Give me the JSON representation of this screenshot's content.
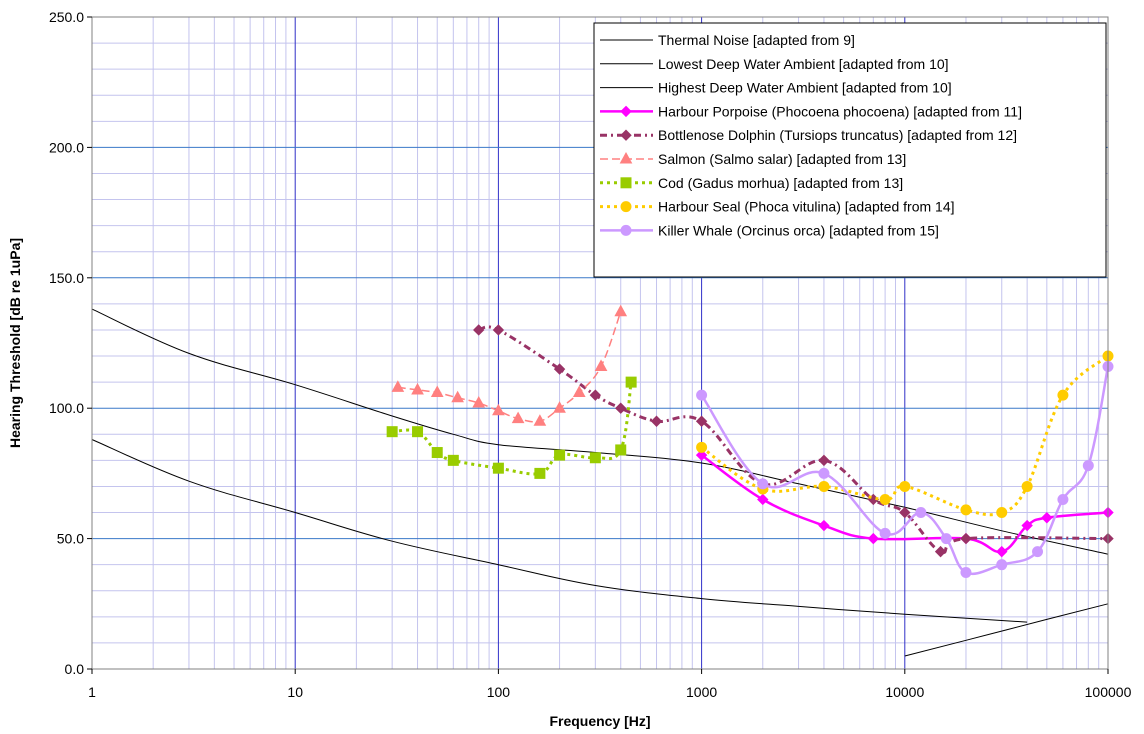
{
  "chart_data": {
    "type": "line",
    "xlabel": "Frequency [Hz]",
    "ylabel": "Hearing Threshold [dB re 1uPa]",
    "x_scale": "log",
    "xlim": [
      1,
      100000
    ],
    "ylim": [
      0,
      250
    ],
    "x_ticks": [
      {
        "value": 1,
        "label": "1"
      },
      {
        "value": 10,
        "label": "10"
      },
      {
        "value": 100,
        "label": "100"
      },
      {
        "value": 1000,
        "label": "1000"
      },
      {
        "value": 10000,
        "label": "10000"
      },
      {
        "value": 100000,
        "label": "100000"
      }
    ],
    "y_ticks": [
      {
        "value": 0,
        "label": "0.0"
      },
      {
        "value": 50,
        "label": "50.0"
      },
      {
        "value": 100,
        "label": "100.0"
      },
      {
        "value": 150,
        "label": "150.0"
      },
      {
        "value": 200,
        "label": "200.0"
      },
      {
        "value": 250,
        "label": "250.0"
      }
    ],
    "grid": true,
    "legend_position": "top-right",
    "series": [
      {
        "name": "Thermal Noise [adapted from 9]",
        "color": "#000000",
        "width": 1,
        "dash": "",
        "marker": "none",
        "smooth": true,
        "points": [
          [
            10000,
            5
          ],
          [
            20000,
            11
          ],
          [
            50000,
            19
          ],
          [
            100000,
            25
          ]
        ]
      },
      {
        "name": "Lowest Deep Water Ambient [adapted from 10]",
        "color": "#000000",
        "width": 1,
        "dash": "",
        "marker": "none",
        "smooth": true,
        "points": [
          [
            1,
            88
          ],
          [
            3,
            72
          ],
          [
            10,
            60
          ],
          [
            30,
            49
          ],
          [
            100,
            40
          ],
          [
            300,
            32
          ],
          [
            1000,
            27
          ],
          [
            3000,
            24
          ],
          [
            10000,
            21
          ],
          [
            40000,
            18
          ]
        ]
      },
      {
        "name": "Highest Deep Water Ambient [adapted from 10]",
        "color": "#000000",
        "width": 1,
        "dash": "",
        "marker": "none",
        "smooth": true,
        "points": [
          [
            1,
            138
          ],
          [
            3,
            121
          ],
          [
            10,
            109
          ],
          [
            30,
            97
          ],
          [
            60,
            90
          ],
          [
            100,
            86
          ],
          [
            300,
            83
          ],
          [
            1000,
            79
          ],
          [
            3000,
            71
          ],
          [
            10000,
            62
          ],
          [
            30000,
            53
          ],
          [
            100000,
            44
          ]
        ]
      },
      {
        "name": "Harbour Porpoise (Phocoena phocoena) [adapted from 11]",
        "color": "#ff00ff",
        "width": 2.5,
        "dash": "",
        "marker": "diamond",
        "smooth": true,
        "points": [
          [
            1000,
            82
          ],
          [
            2000,
            65
          ],
          [
            4000,
            55
          ],
          [
            7000,
            50
          ],
          [
            20000,
            50
          ],
          [
            30000,
            45
          ],
          [
            40000,
            55
          ],
          [
            50000,
            58
          ],
          [
            100000,
            60
          ]
        ]
      },
      {
        "name": "Bottlenose Dolphin (Tursiops truncatus) [adapted from 12]",
        "color": "#993366",
        "width": 3,
        "dash": "7,4,2,4",
        "marker": "diamond",
        "smooth": true,
        "points": [
          [
            80,
            130
          ],
          [
            100,
            130
          ],
          [
            200,
            115
          ],
          [
            300,
            105
          ],
          [
            400,
            100
          ],
          [
            600,
            95
          ],
          [
            1000,
            95
          ],
          [
            2000,
            71
          ],
          [
            4000,
            80
          ],
          [
            7000,
            65
          ],
          [
            10000,
            60
          ],
          [
            15000,
            45
          ],
          [
            20000,
            50
          ],
          [
            100000,
            50
          ]
        ]
      },
      {
        "name": "Salmon (Salmo salar) [adapted from 13]",
        "color": "#ff8080",
        "width": 1.5,
        "dash": "8,4",
        "marker": "triangle",
        "smooth": true,
        "points": [
          [
            32,
            108
          ],
          [
            40,
            107
          ],
          [
            50,
            106
          ],
          [
            63,
            104
          ],
          [
            80,
            102
          ],
          [
            100,
            99
          ],
          [
            125,
            96
          ],
          [
            160,
            95
          ],
          [
            200,
            100
          ],
          [
            250,
            106
          ],
          [
            320,
            116
          ],
          [
            400,
            137
          ]
        ]
      },
      {
        "name": "Cod (Gadus morhua) [adapted from 13]",
        "color": "#99cc00",
        "width": 3,
        "dash": "3,4",
        "marker": "square",
        "smooth": true,
        "points": [
          [
            30,
            91
          ],
          [
            40,
            91
          ],
          [
            50,
            83
          ],
          [
            60,
            80
          ],
          [
            100,
            77
          ],
          [
            160,
            75
          ],
          [
            200,
            82
          ],
          [
            300,
            81
          ],
          [
            400,
            84
          ],
          [
            450,
            110
          ]
        ]
      },
      {
        "name": "Harbour Seal (Phoca vitulina) [adapted from 14]",
        "color": "#ffcc00",
        "width": 3,
        "dash": "3,4",
        "marker": "circle",
        "smooth": true,
        "points": [
          [
            1000,
            85
          ],
          [
            2000,
            69
          ],
          [
            4000,
            70
          ],
          [
            8000,
            65
          ],
          [
            10000,
            70
          ],
          [
            20000,
            61
          ],
          [
            30000,
            60
          ],
          [
            40000,
            70
          ],
          [
            60000,
            105
          ],
          [
            100000,
            120
          ]
        ]
      },
      {
        "name": "Killer Whale (Orcinus orca) [adapted from 15]",
        "color": "#cc99ff",
        "width": 2.5,
        "dash": "",
        "marker": "circle",
        "smooth": true,
        "points": [
          [
            1000,
            105
          ],
          [
            2000,
            71
          ],
          [
            4000,
            75
          ],
          [
            8000,
            52
          ],
          [
            12000,
            60
          ],
          [
            16000,
            50
          ],
          [
            20000,
            37
          ],
          [
            30000,
            40
          ],
          [
            45000,
            45
          ],
          [
            60000,
            65
          ],
          [
            80000,
            78
          ],
          [
            100000,
            116
          ]
        ]
      }
    ]
  }
}
